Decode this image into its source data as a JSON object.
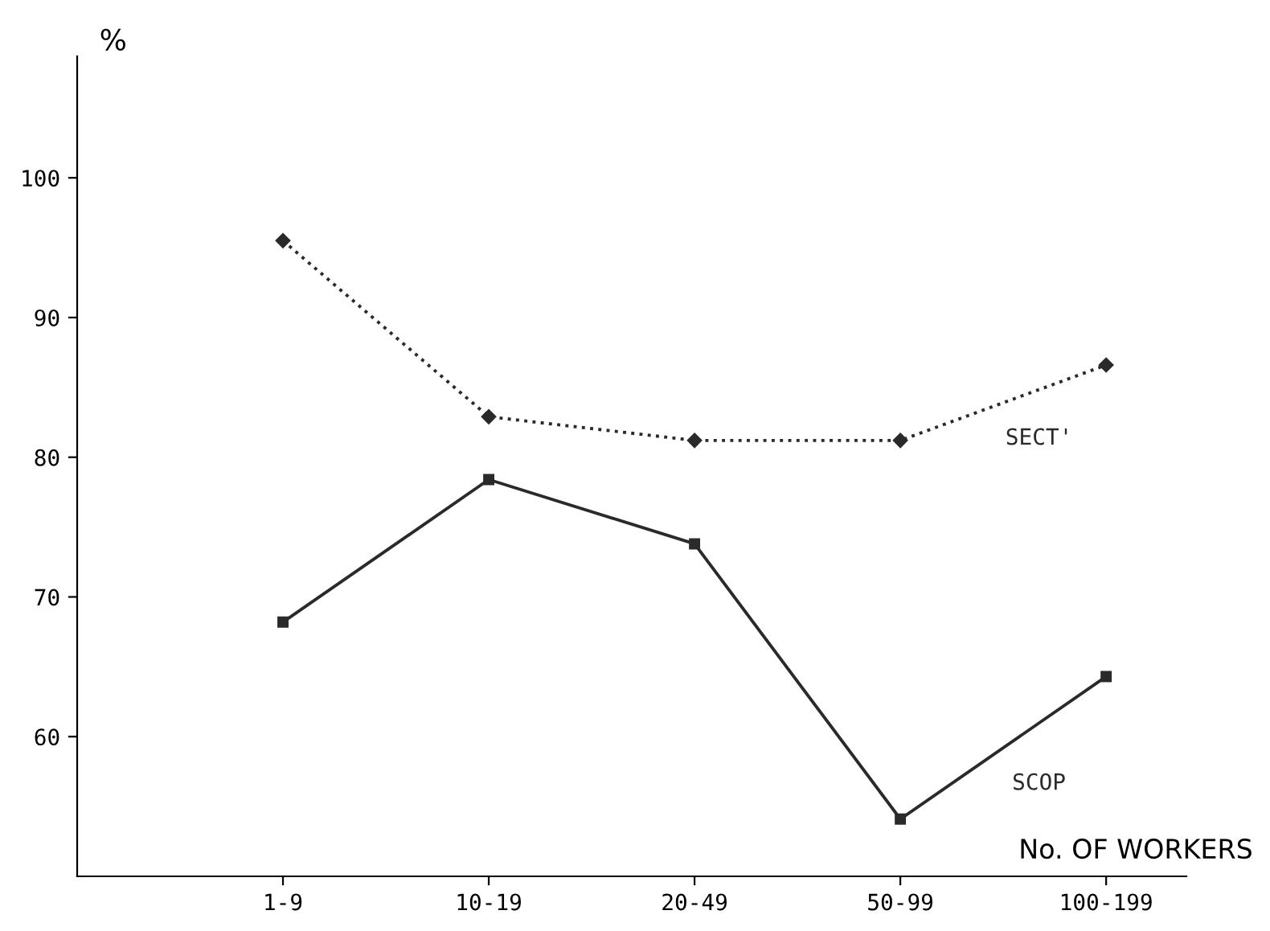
{
  "chart_data": {
    "type": "line",
    "ylabel": "%",
    "xlabel": "No. OF WORKERS",
    "categories": [
      "1-9",
      "10-19",
      "20-49",
      "50-99",
      "100-199"
    ],
    "series": [
      {
        "name": "SECT'",
        "color": "#2a2a2a",
        "line_style": "dotted",
        "marker": "diamond",
        "values": [
          95.5,
          82.9,
          81.2,
          81.2,
          86.6
        ]
      },
      {
        "name": "SCOP",
        "color": "#2a2a2a",
        "line_style": "solid",
        "marker": "square",
        "values": [
          68.2,
          78.4,
          73.8,
          54.1,
          64.3
        ]
      }
    ],
    "ylim": [
      50,
      108.7
    ],
    "yticks": [
      60,
      70,
      80,
      90,
      100
    ],
    "grid": false,
    "legend": false
  }
}
